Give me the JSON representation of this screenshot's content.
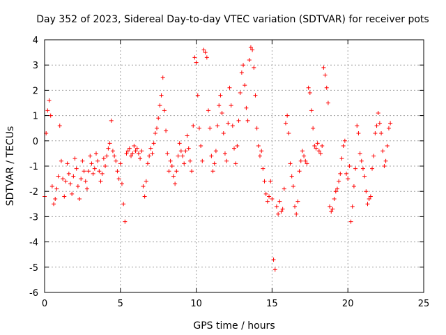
{
  "chart_data": {
    "type": "scatter",
    "title": "Day 352 of 2023, Sidereal Day-to-day VTEC variation (SDTVAR) for receiver pots",
    "xlabel": "GPS time / hours",
    "ylabel": "SDTVAR / TECUs",
    "xlim": [
      0,
      25
    ],
    "ylim": [
      -6,
      4
    ],
    "xticks": [
      0,
      5,
      10,
      15,
      20,
      25
    ],
    "xtick_labels": [
      "0",
      "5",
      "10",
      "15",
      "20",
      "25"
    ],
    "yticks": [
      -6,
      -5,
      -4,
      -3,
      -2,
      -1,
      0,
      1,
      2,
      3,
      4
    ],
    "ytick_labels": [
      "-6",
      "-5",
      "-4",
      "-3",
      "-2",
      "-1",
      "0",
      "1",
      "2",
      "3",
      "4"
    ],
    "grid": true,
    "marker": "+",
    "series": [
      {
        "name": "SDTVAR",
        "color": "#ff0000",
        "x": [
          0.0,
          0.1,
          0.2,
          0.3,
          0.4,
          0.5,
          0.6,
          0.7,
          0.8,
          0.9,
          1.0,
          1.1,
          1.2,
          1.3,
          1.4,
          1.5,
          1.6,
          1.7,
          1.8,
          1.9,
          2.0,
          2.1,
          2.2,
          2.3,
          2.4,
          2.5,
          2.6,
          2.7,
          2.8,
          2.9,
          3.0,
          3.1,
          3.2,
          3.3,
          3.4,
          3.5,
          3.6,
          3.7,
          3.8,
          3.9,
          4.0,
          4.1,
          4.2,
          4.3,
          4.4,
          4.5,
          4.6,
          4.7,
          4.8,
          4.9,
          5.0,
          5.1,
          5.2,
          5.3,
          5.4,
          5.5,
          5.6,
          5.7,
          5.8,
          5.9,
          6.0,
          6.1,
          6.2,
          6.3,
          6.4,
          6.5,
          6.6,
          6.7,
          6.8,
          6.9,
          7.0,
          7.1,
          7.2,
          7.3,
          7.4,
          7.5,
          7.6,
          7.7,
          7.8,
          7.9,
          8.0,
          8.1,
          8.2,
          8.3,
          8.4,
          8.5,
          8.6,
          8.7,
          8.8,
          8.9,
          9.0,
          9.1,
          9.2,
          9.3,
          9.4,
          9.5,
          9.6,
          9.7,
          9.8,
          9.9,
          10.0,
          10.1,
          10.2,
          10.3,
          10.4,
          10.5,
          10.6,
          10.7,
          10.8,
          10.9,
          11.0,
          11.1,
          11.2,
          11.3,
          11.4,
          11.5,
          11.6,
          11.7,
          11.8,
          11.9,
          12.0,
          12.1,
          12.2,
          12.3,
          12.4,
          12.5,
          12.6,
          12.7,
          12.8,
          12.9,
          13.0,
          13.1,
          13.2,
          13.3,
          13.4,
          13.5,
          13.6,
          13.7,
          13.8,
          13.9,
          14.0,
          14.1,
          14.2,
          14.3,
          14.4,
          14.5,
          14.6,
          14.7,
          14.8,
          14.9,
          15.0,
          15.1,
          15.2,
          15.3,
          15.4,
          15.5,
          15.6,
          15.7,
          15.8,
          15.9,
          16.0,
          16.1,
          16.2,
          16.3,
          16.4,
          16.5,
          16.6,
          16.7,
          16.8,
          16.9,
          17.0,
          17.1,
          17.2,
          17.3,
          17.4,
          17.5,
          17.6,
          17.7,
          17.8,
          17.9,
          18.0,
          18.1,
          18.2,
          18.3,
          18.4,
          18.5,
          18.6,
          18.7,
          18.8,
          18.9,
          19.0,
          19.1,
          19.2,
          19.3,
          19.4,
          19.5,
          19.6,
          19.7,
          19.8,
          19.9,
          20.0,
          20.1,
          20.2,
          20.3,
          20.4,
          20.5,
          20.6,
          20.7,
          20.8,
          20.9,
          21.0,
          21.1,
          21.2,
          21.3,
          21.4,
          21.5,
          21.6,
          21.7,
          21.8,
          21.9,
          22.0,
          22.1,
          22.2,
          22.3,
          22.4,
          22.5,
          22.6,
          22.7,
          22.8
        ],
        "y": [
          -2.2,
          0.3,
          1.2,
          1.6,
          1.0,
          -1.8,
          -2.5,
          -2.3,
          -1.9,
          -1.4,
          0.6,
          -0.8,
          -1.5,
          -2.2,
          -1.6,
          -0.9,
          -1.3,
          -1.7,
          -2.1,
          -1.4,
          -0.7,
          -1.1,
          -1.8,
          -2.3,
          -1.5,
          -0.8,
          -1.2,
          -1.6,
          -1.9,
          -1.2,
          -0.6,
          -0.9,
          -1.3,
          -1.1,
          -0.5,
          -0.8,
          -1.2,
          -1.6,
          -1.3,
          -0.7,
          -1.0,
          -0.6,
          -0.3,
          -0.1,
          0.8,
          -0.4,
          -0.6,
          -0.8,
          -1.2,
          -1.5,
          -0.9,
          -1.7,
          -2.5,
          -3.2,
          -0.5,
          -0.4,
          -0.3,
          -0.6,
          -0.5,
          -0.2,
          -0.4,
          -0.3,
          -0.5,
          -0.7,
          -0.4,
          -1.8,
          -2.2,
          -1.6,
          -0.9,
          -0.6,
          -0.3,
          -0.5,
          -0.1,
          0.3,
          0.5,
          0.9,
          1.4,
          1.8,
          2.5,
          1.2,
          0.4,
          -0.5,
          -1.2,
          -0.8,
          -1.0,
          -1.4,
          -1.7,
          -1.2,
          -0.6,
          -0.1,
          -0.4,
          -0.6,
          -0.9,
          -0.4,
          0.2,
          -0.3,
          -0.8,
          -1.2,
          0.6,
          3.3,
          3.1,
          1.8,
          0.5,
          -0.2,
          -0.8,
          3.6,
          3.5,
          3.3,
          1.2,
          0.5,
          -0.6,
          -1.2,
          -0.9,
          -0.4,
          0.6,
          1.4,
          1.8,
          1.1,
          0.3,
          -0.5,
          -0.8,
          0.7,
          2.1,
          1.4,
          0.6,
          -0.3,
          -0.9,
          -0.2,
          0.8,
          1.9,
          2.7,
          3.0,
          2.2,
          1.3,
          0.8,
          3.2,
          3.7,
          3.6,
          2.9,
          1.8,
          0.5,
          -0.2,
          -0.6,
          -0.4,
          -1.1,
          -1.6,
          -2.1,
          -2.4,
          -2.2,
          -1.6,
          -2.3,
          -4.7,
          -5.1,
          -2.6,
          -2.9,
          -2.4,
          -2.8,
          -2.7,
          -1.9,
          0.7,
          1.0,
          0.3,
          -0.9,
          -1.4,
          -1.8,
          -2.6,
          -2.9,
          -2.4,
          -1.2,
          -0.8,
          -0.4,
          -0.6,
          -0.8,
          -0.9,
          2.1,
          1.9,
          1.2,
          0.5,
          -0.2,
          -0.3,
          -0.1,
          -0.4,
          -0.5,
          -0.2,
          2.9,
          2.6,
          2.1,
          1.5,
          -2.6,
          -2.8,
          -2.7,
          -2.3,
          -2.0,
          -1.9,
          -1.6,
          -1.3,
          -0.7,
          -0.2,
          0.0,
          -1.3,
          -1.5,
          -1.0,
          -3.2,
          -2.6,
          -1.8,
          -1.1,
          0.6,
          0.3,
          -0.5,
          -0.8,
          -1.1,
          -1.4,
          -2.0,
          -2.5,
          -2.3,
          -2.2,
          -1.1,
          -0.6,
          0.3,
          0.6,
          1.1,
          0.7,
          0.3,
          -0.4,
          -1.0,
          -0.8,
          -0.2,
          0.5,
          0.7
        ]
      }
    ]
  }
}
